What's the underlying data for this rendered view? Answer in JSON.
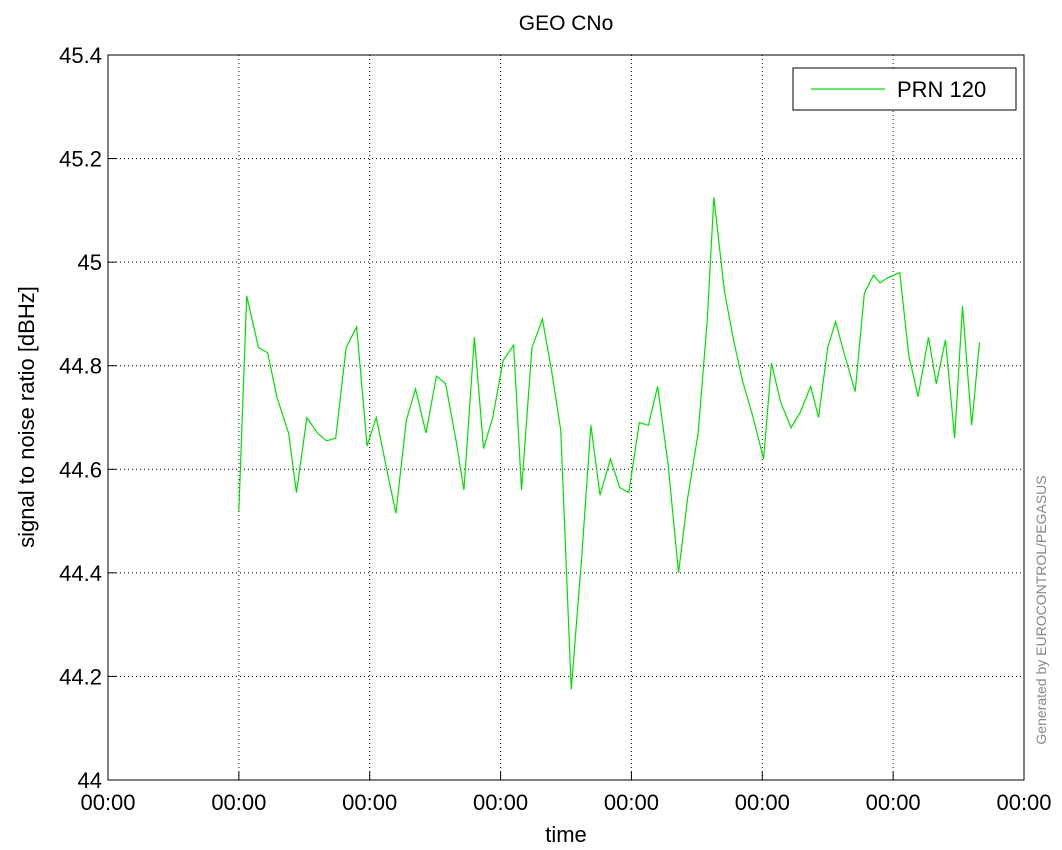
{
  "chart_data": {
    "type": "line",
    "title": "GEO CNo",
    "xlabel": "time",
    "ylabel": "signal to noise ratio [dBHz]",
    "annotation": "Generated by EUROCONTROL/PEGASUS",
    "x": [
      1.0,
      1.06,
      1.15,
      1.22,
      1.29,
      1.38,
      1.44,
      1.52,
      1.6,
      1.67,
      1.74,
      1.82,
      1.9,
      1.98,
      2.05,
      2.13,
      2.2,
      2.28,
      2.35,
      2.43,
      2.51,
      2.58,
      2.66,
      2.72,
      2.8,
      2.87,
      2.94,
      3.02,
      3.1,
      3.16,
      3.24,
      3.32,
      3.39,
      3.46,
      3.54,
      3.62,
      3.69,
      3.76,
      3.84,
      3.91,
      3.98,
      4.06,
      4.13,
      4.2,
      4.28,
      4.36,
      4.43,
      4.51,
      4.58,
      4.63,
      4.71,
      4.78,
      4.85,
      4.93,
      5.01,
      5.07,
      5.14,
      5.22,
      5.29,
      5.37,
      5.43,
      5.5,
      5.56,
      5.63,
      5.71,
      5.78,
      5.85,
      5.9,
      5.96,
      6.05,
      6.12,
      6.19,
      6.27,
      6.33,
      6.4,
      6.47,
      6.53,
      6.6,
      6.66
    ],
    "series": [
      {
        "name": "PRN 120",
        "color": "#00e000",
        "values": [
          44.52,
          44.935,
          44.835,
          44.825,
          44.74,
          44.67,
          44.555,
          44.7,
          44.67,
          44.655,
          44.66,
          44.835,
          44.875,
          44.645,
          44.7,
          44.6,
          44.515,
          44.695,
          44.755,
          44.67,
          44.78,
          44.765,
          44.655,
          44.56,
          44.855,
          44.64,
          44.7,
          44.81,
          44.84,
          44.56,
          44.835,
          44.89,
          44.79,
          44.675,
          44.175,
          44.43,
          44.685,
          44.55,
          44.62,
          44.565,
          44.555,
          44.69,
          44.685,
          44.76,
          44.61,
          44.4,
          44.545,
          44.67,
          44.89,
          45.125,
          44.945,
          44.85,
          44.77,
          44.7,
          44.62,
          44.805,
          44.73,
          44.68,
          44.71,
          44.76,
          44.7,
          44.835,
          44.885,
          44.82,
          44.75,
          44.94,
          44.975,
          44.96,
          44.97,
          44.98,
          44.82,
          44.74,
          44.855,
          44.765,
          44.85,
          44.66,
          44.915,
          44.685,
          44.845
        ]
      }
    ],
    "xlim": [
      0,
      7
    ],
    "xticks": [
      {
        "value": 0,
        "label": "00:00"
      },
      {
        "value": 1,
        "label": "00:00"
      },
      {
        "value": 2,
        "label": "00:00"
      },
      {
        "value": 3,
        "label": "00:00"
      },
      {
        "value": 4,
        "label": "00:00"
      },
      {
        "value": 5,
        "label": "00:00"
      },
      {
        "value": 6,
        "label": "00:00"
      },
      {
        "value": 7,
        "label": "00:00"
      }
    ],
    "ylim": [
      44,
      45.4
    ],
    "yticks": [
      44,
      44.2,
      44.4,
      44.6,
      44.8,
      45,
      45.2,
      45.4
    ],
    "grid": true,
    "legend": "upper-right"
  }
}
